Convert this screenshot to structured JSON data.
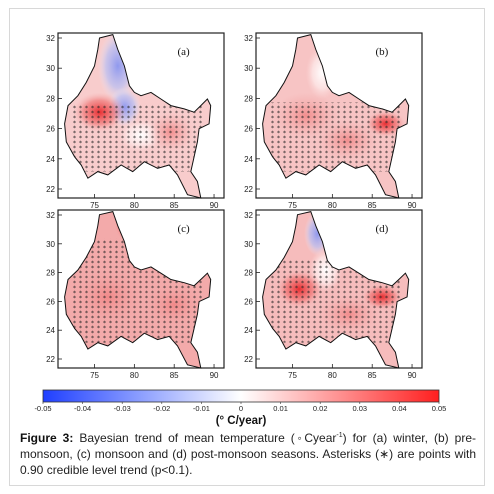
{
  "figure": {
    "panels": [
      {
        "label": "(a)"
      },
      {
        "label": "(b)"
      },
      {
        "label": "(c)"
      },
      {
        "label": "(d)"
      }
    ],
    "lat_ticks": [
      "32",
      "30",
      "28",
      "26",
      "24",
      "22"
    ],
    "lon_ticks": [
      "75",
      "80",
      "85",
      "90"
    ],
    "colorbar": {
      "ticks": [
        "-0.05",
        "-0.04",
        "-0.03",
        "-0.02",
        "-0.01",
        "0",
        "0.01",
        "0.02",
        "0.03",
        "0.04",
        "0.05"
      ],
      "unit": "(° C/year)",
      "colors": {
        "low": "#1f3fff",
        "mid": "#ffffff",
        "high": "#ff1f1f"
      }
    }
  },
  "caption": {
    "label": "Figure 3:",
    "text_before_sup": " Bayesian trend of mean temperature (◦Cyear",
    "sup": "-1",
    "text_after_sup": ") for (a) winter, (b) pre-monsoon, (c) monsoon and (d) post-monsoon seasons. Asterisks (∗) are points with 0.90 credible level trend (p<0.1)."
  }
}
